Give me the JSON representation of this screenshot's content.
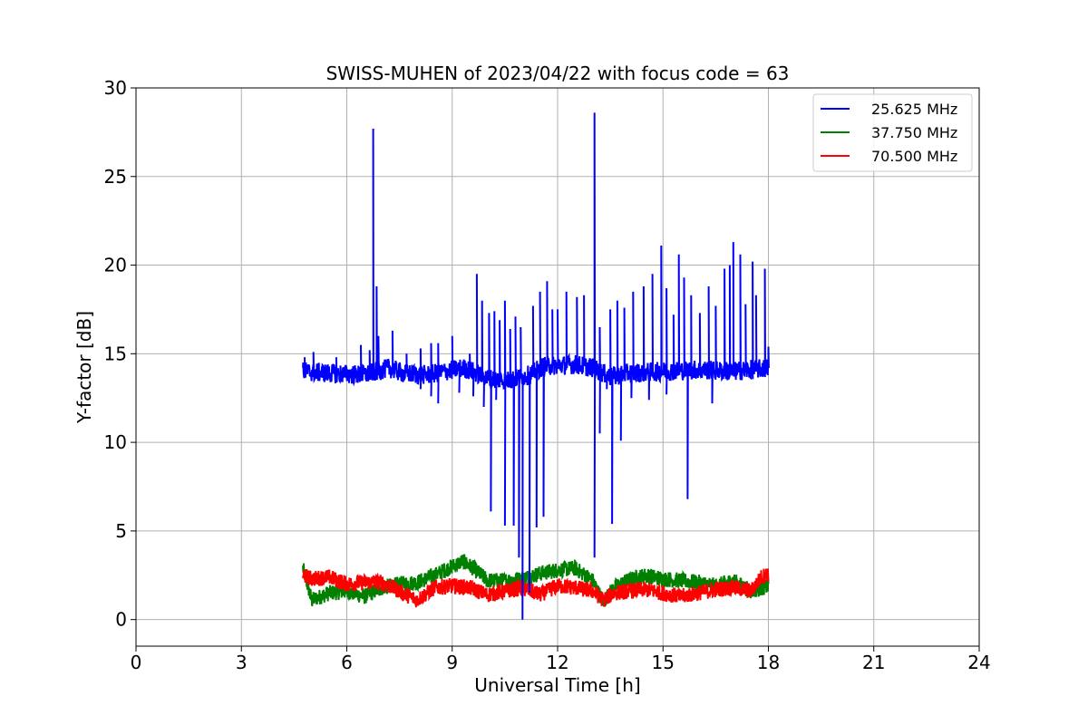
{
  "chart_data": {
    "type": "line",
    "title": "SWISS-MUHEN of 2023/04/22 with focus code = 63",
    "xlabel": "Universal Time [h]",
    "ylabel": "Y-factor [dB]",
    "xlim": [
      0,
      24
    ],
    "ylim": [
      -1.5,
      30
    ],
    "xticks": [
      0,
      3,
      6,
      9,
      12,
      15,
      18,
      21,
      24
    ],
    "yticks": [
      0,
      5,
      10,
      15,
      20,
      25,
      30
    ],
    "grid": true,
    "legend_position": "top-right",
    "series": [
      {
        "name": "25.625 MHz",
        "color": "#0000ff",
        "baseline": [
          [
            4.75,
            14.0
          ],
          [
            5.5,
            13.9
          ],
          [
            6.5,
            13.8
          ],
          [
            7.2,
            14.2
          ],
          [
            7.6,
            13.9
          ],
          [
            8.3,
            13.8
          ],
          [
            8.8,
            14.0
          ],
          [
            9.3,
            14.2
          ],
          [
            9.6,
            14.0
          ],
          [
            10.0,
            13.6
          ],
          [
            10.6,
            13.5
          ],
          [
            11.2,
            13.8
          ],
          [
            11.6,
            14.3
          ],
          [
            12.5,
            14.4
          ],
          [
            13.0,
            14.2
          ],
          [
            13.5,
            13.7
          ],
          [
            14.0,
            13.9
          ],
          [
            15.0,
            14.0
          ],
          [
            16.0,
            14.1
          ],
          [
            17.0,
            14.0
          ],
          [
            18.0,
            14.2
          ]
        ],
        "spikes": [
          [
            4.8,
            14.8
          ],
          [
            5.05,
            15.1
          ],
          [
            5.7,
            14.8
          ],
          [
            6.4,
            15.5
          ],
          [
            6.65,
            15.2
          ],
          [
            6.75,
            27.7
          ],
          [
            6.85,
            18.8
          ],
          [
            6.9,
            16.0
          ],
          [
            7.3,
            16.3
          ],
          [
            7.7,
            15.0
          ],
          [
            8.1,
            15.3
          ],
          [
            8.4,
            15.6
          ],
          [
            8.6,
            15.6
          ],
          [
            9.0,
            16.0
          ],
          [
            9.5,
            15.0
          ],
          [
            9.7,
            19.5
          ],
          [
            9.85,
            18.0
          ],
          [
            10.05,
            17.3
          ],
          [
            10.2,
            17.4
          ],
          [
            10.35,
            16.9
          ],
          [
            10.5,
            18.0
          ],
          [
            10.65,
            16.4
          ],
          [
            10.8,
            17.1
          ],
          [
            10.95,
            16.5
          ],
          [
            11.3,
            17.7
          ],
          [
            11.5,
            18.5
          ],
          [
            11.7,
            19.1
          ],
          [
            11.85,
            17.5
          ],
          [
            12.0,
            17.5
          ],
          [
            12.25,
            18.5
          ],
          [
            12.55,
            18.2
          ],
          [
            12.75,
            18.3
          ],
          [
            13.05,
            28.6
          ],
          [
            13.2,
            16.5
          ],
          [
            13.5,
            17.5
          ],
          [
            13.7,
            18.0
          ],
          [
            13.9,
            17.6
          ],
          [
            14.15,
            18.5
          ],
          [
            14.45,
            18.8
          ],
          [
            14.7,
            19.5
          ],
          [
            14.95,
            21.1
          ],
          [
            15.1,
            18.7
          ],
          [
            15.3,
            17.2
          ],
          [
            15.45,
            20.6
          ],
          [
            15.6,
            19.3
          ],
          [
            15.8,
            18.3
          ],
          [
            16.05,
            17.3
          ],
          [
            16.3,
            18.8
          ],
          [
            16.5,
            17.7
          ],
          [
            16.75,
            19.8
          ],
          [
            16.9,
            20.0
          ],
          [
            17.0,
            21.3
          ],
          [
            17.2,
            20.6
          ],
          [
            17.35,
            17.8
          ],
          [
            17.55,
            20.2
          ],
          [
            17.65,
            18.3
          ],
          [
            17.9,
            19.8
          ],
          [
            18.0,
            15.4
          ]
        ],
        "dips": [
          [
            8.1,
            13.0
          ],
          [
            8.4,
            12.6
          ],
          [
            8.6,
            12.2
          ],
          [
            9.2,
            12.8
          ],
          [
            9.6,
            12.6
          ],
          [
            9.9,
            12.0
          ],
          [
            10.1,
            6.1
          ],
          [
            10.25,
            12.4
          ],
          [
            10.5,
            5.3
          ],
          [
            10.75,
            5.3
          ],
          [
            10.9,
            3.5
          ],
          [
            11.0,
            0.0
          ],
          [
            11.2,
            1.5
          ],
          [
            11.4,
            5.2
          ],
          [
            11.6,
            5.8
          ],
          [
            13.05,
            3.5
          ],
          [
            13.2,
            10.5
          ],
          [
            13.4,
            13.0
          ],
          [
            13.55,
            5.4
          ],
          [
            13.8,
            10.1
          ],
          [
            14.1,
            12.5
          ],
          [
            14.6,
            12.4
          ],
          [
            15.1,
            12.7
          ],
          [
            15.7,
            6.8
          ],
          [
            16.4,
            12.2
          ]
        ]
      },
      {
        "name": "37.750 MHz",
        "color": "#008000",
        "values": [
          [
            4.75,
            2.9
          ],
          [
            5.0,
            1.1
          ],
          [
            5.5,
            1.5
          ],
          [
            6.0,
            1.6
          ],
          [
            6.5,
            1.3
          ],
          [
            7.0,
            1.8
          ],
          [
            7.5,
            2.0
          ],
          [
            8.0,
            2.1
          ],
          [
            8.5,
            2.5
          ],
          [
            9.0,
            3.0
          ],
          [
            9.3,
            3.3
          ],
          [
            9.6,
            2.9
          ],
          [
            10.0,
            2.2
          ],
          [
            10.5,
            2.2
          ],
          [
            11.0,
            2.3
          ],
          [
            11.5,
            2.6
          ],
          [
            12.0,
            2.8
          ],
          [
            12.5,
            2.9
          ],
          [
            13.0,
            2.2
          ],
          [
            13.3,
            1.0
          ],
          [
            13.6,
            1.8
          ],
          [
            14.0,
            2.2
          ],
          [
            14.5,
            2.5
          ],
          [
            15.0,
            2.3
          ],
          [
            15.5,
            2.2
          ],
          [
            16.0,
            2.1
          ],
          [
            16.5,
            1.9
          ],
          [
            17.0,
            2.2
          ],
          [
            17.5,
            1.6
          ],
          [
            18.0,
            1.9
          ]
        ]
      },
      {
        "name": "70.500 MHz",
        "color": "#ff0000",
        "values": [
          [
            4.75,
            2.5
          ],
          [
            5.0,
            2.3
          ],
          [
            5.5,
            2.4
          ],
          [
            6.0,
            2.0
          ],
          [
            6.5,
            2.1
          ],
          [
            7.0,
            2.1
          ],
          [
            7.5,
            1.6
          ],
          [
            8.0,
            1.1
          ],
          [
            8.5,
            1.8
          ],
          [
            9.0,
            1.9
          ],
          [
            9.5,
            1.8
          ],
          [
            10.0,
            1.4
          ],
          [
            10.5,
            1.6
          ],
          [
            11.0,
            1.8
          ],
          [
            11.5,
            1.4
          ],
          [
            12.0,
            1.9
          ],
          [
            12.5,
            1.8
          ],
          [
            13.0,
            1.6
          ],
          [
            13.3,
            1.1
          ],
          [
            13.6,
            1.5
          ],
          [
            14.0,
            1.6
          ],
          [
            14.5,
            1.7
          ],
          [
            15.0,
            1.5
          ],
          [
            15.5,
            1.3
          ],
          [
            16.0,
            1.5
          ],
          [
            16.5,
            1.7
          ],
          [
            17.0,
            1.8
          ],
          [
            17.5,
            1.6
          ],
          [
            17.8,
            2.4
          ],
          [
            18.0,
            2.6
          ]
        ]
      }
    ]
  }
}
